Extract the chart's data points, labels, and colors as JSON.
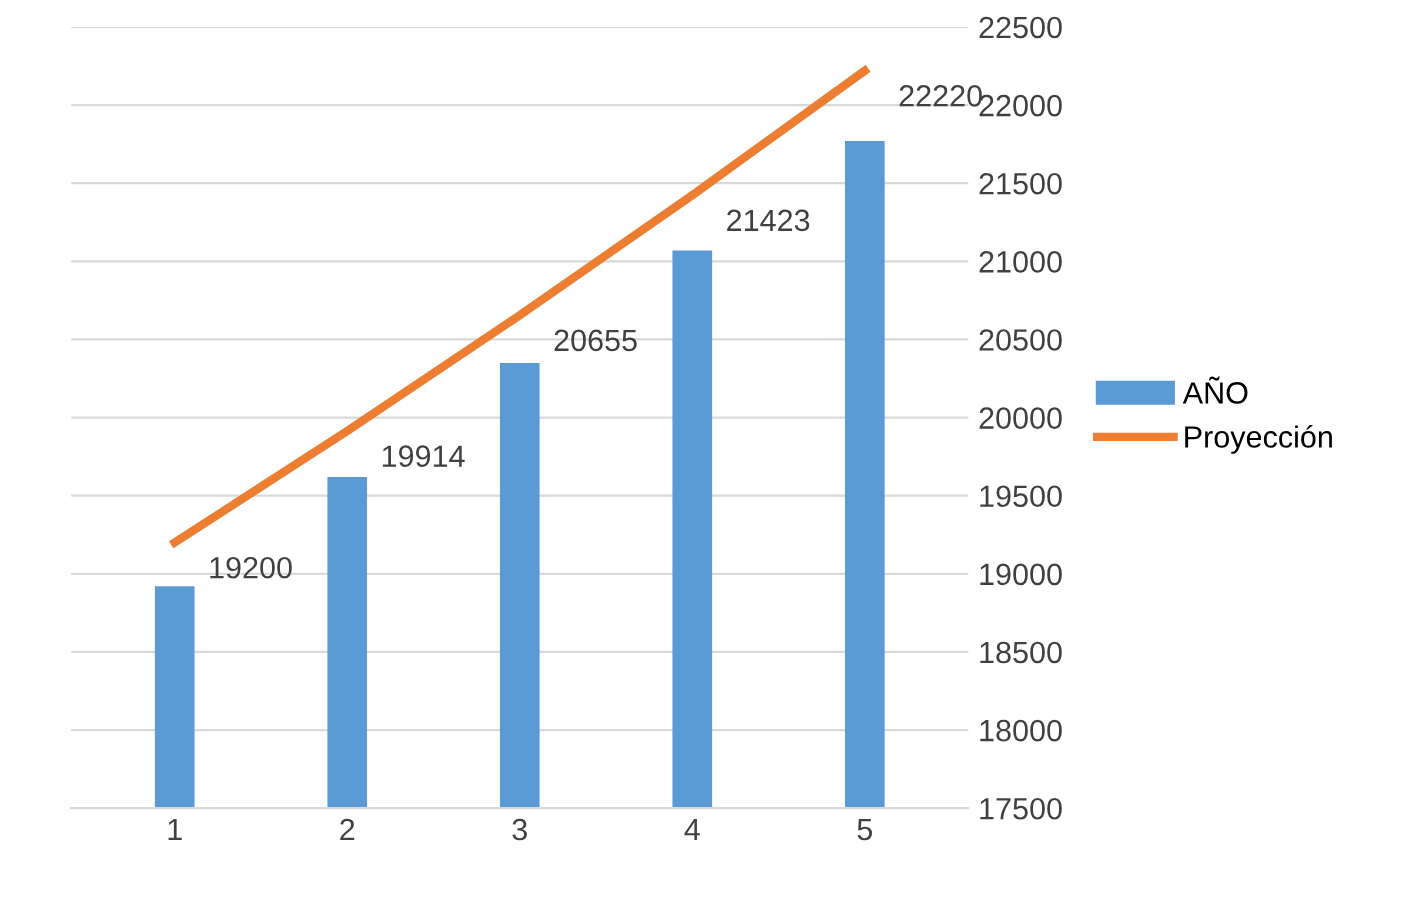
{
  "chart_data": {
    "type": "bar",
    "categories": [
      "1",
      "2",
      "3",
      "4",
      "5"
    ],
    "series": [
      {
        "name": "AÑO",
        "color": "#5b9bd5",
        "values": [
          18920,
          19620,
          20350,
          21070,
          21770
        ]
      },
      {
        "name": "Proyección",
        "type": "line",
        "color": "#ed7d31",
        "values": [
          19200,
          19914,
          20655,
          21423,
          22220
        ],
        "value_labels": [
          "19200",
          "19914",
          "20655",
          "21423",
          "22220"
        ]
      }
    ],
    "ylim": [
      17500,
      22500
    ],
    "yticks": [
      17500,
      18000,
      18500,
      19000,
      19500,
      20000,
      20500,
      21000,
      21500,
      22000,
      22500
    ],
    "grid": "y",
    "legend": "right",
    "marker": "none",
    "line_style": "solid"
  }
}
